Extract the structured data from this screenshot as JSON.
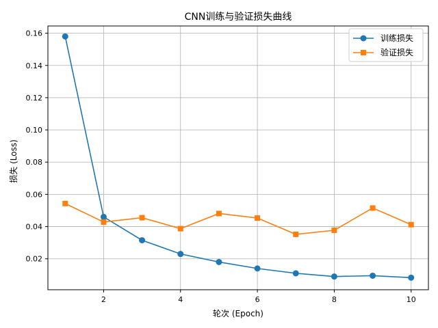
{
  "chart_data": {
    "type": "line",
    "title": "CNN训练与验证损失曲线",
    "xlabel": "轮次 (Epoch)",
    "ylabel": "损失 (Loss)",
    "x": [
      1,
      2,
      3,
      4,
      5,
      6,
      7,
      8,
      9,
      10
    ],
    "xlim": [
      0.55,
      10.45
    ],
    "ylim": [
      0.0008,
      0.1645
    ],
    "xticks": [
      2,
      4,
      6,
      8,
      10
    ],
    "yticks": [
      0.02,
      0.04,
      0.06,
      0.08,
      0.1,
      0.12,
      0.14,
      0.16
    ],
    "ytick_labels": [
      "0.02",
      "0.04",
      "0.06",
      "0.08",
      "0.10",
      "0.12",
      "0.14",
      "0.16"
    ],
    "grid": true,
    "legend_position": "top-right",
    "series": [
      {
        "name": "训练损失",
        "color": "#1f77b4",
        "marker": "circle",
        "values": [
          0.158,
          0.046,
          0.0315,
          0.023,
          0.018,
          0.014,
          0.011,
          0.009,
          0.0095,
          0.0083
        ]
      },
      {
        "name": "验证损失",
        "color": "#ff7f0e",
        "marker": "square",
        "values": [
          0.0543,
          0.0428,
          0.0455,
          0.0387,
          0.0481,
          0.0453,
          0.0352,
          0.0377,
          0.0515,
          0.0412
        ]
      }
    ]
  }
}
